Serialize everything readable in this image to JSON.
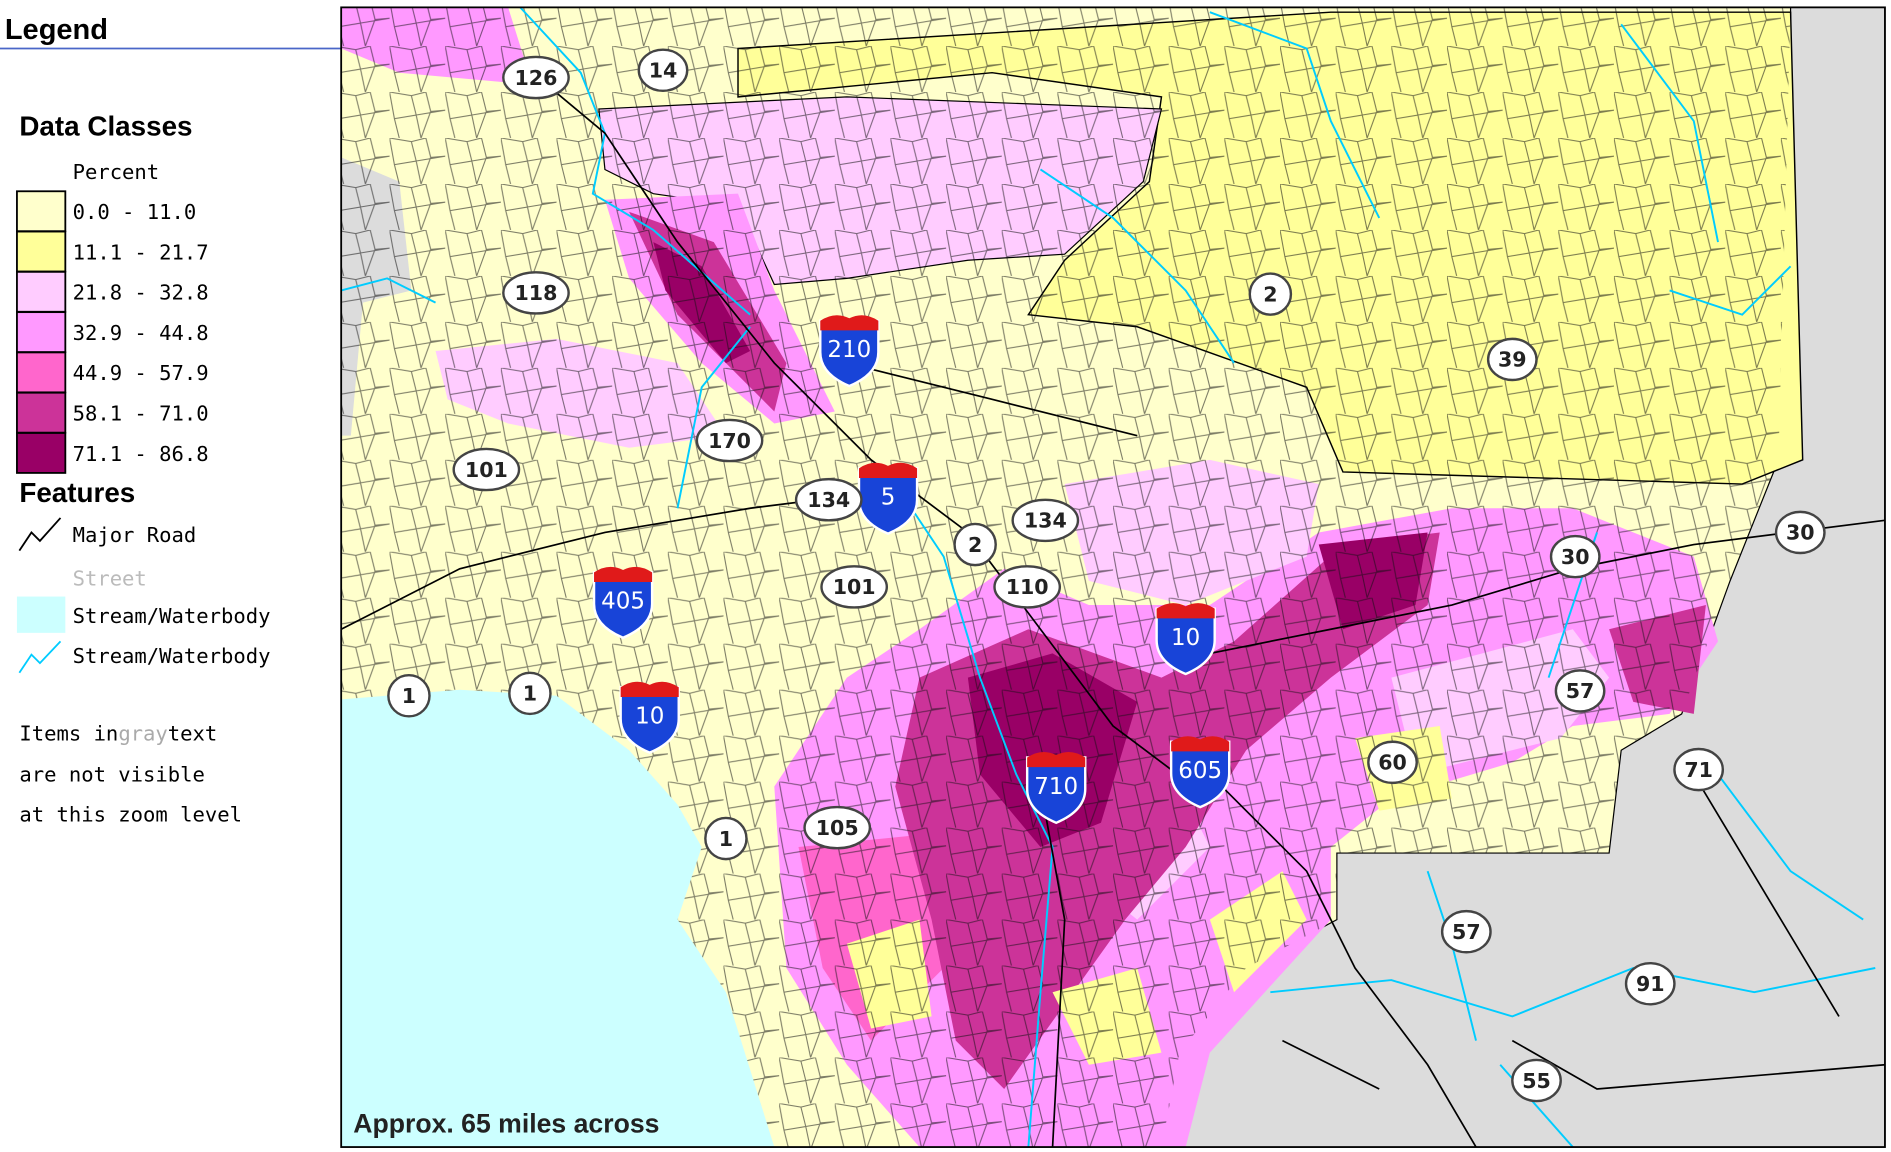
{
  "legend": {
    "title": "Legend",
    "data_classes_title": "Data Classes",
    "unit": "Percent",
    "classes": [
      {
        "label": "0.0 - 11.0",
        "color": "#ffffcc"
      },
      {
        "label": "11.1 - 21.7",
        "color": "#ffff99"
      },
      {
        "label": "21.8 - 32.8",
        "color": "#ffccff"
      },
      {
        "label": "32.9 - 44.8",
        "color": "#ff99ff"
      },
      {
        "label": "44.9 - 57.9",
        "color": "#ff66cc"
      },
      {
        "label": "58.1 - 71.0",
        "color": "#cc3399"
      },
      {
        "label": "71.1 - 86.8",
        "color": "#990066"
      }
    ],
    "features_title": "Features",
    "features": [
      "Major Road",
      "Street",
      "Stream/Waterbody",
      "Stream/Waterbody"
    ],
    "note": {
      "line1_start": "Items in",
      "line1_gray": "gray",
      "line1_end": "text",
      "line2": "are not visible",
      "line3": "at this zoom level"
    }
  },
  "map": {
    "scale_text": "Approx. 65 miles across",
    "interstates": [
      "210",
      "5",
      "405",
      "10",
      "10",
      "710",
      "605"
    ],
    "state_routes": [
      "126",
      "14",
      "118",
      "2",
      "39",
      "170",
      "101",
      "134",
      "2",
      "134",
      "101",
      "110",
      "30",
      "30",
      "1",
      "1",
      "57",
      "60",
      "71",
      "1",
      "105",
      "57",
      "91",
      "55"
    ]
  }
}
